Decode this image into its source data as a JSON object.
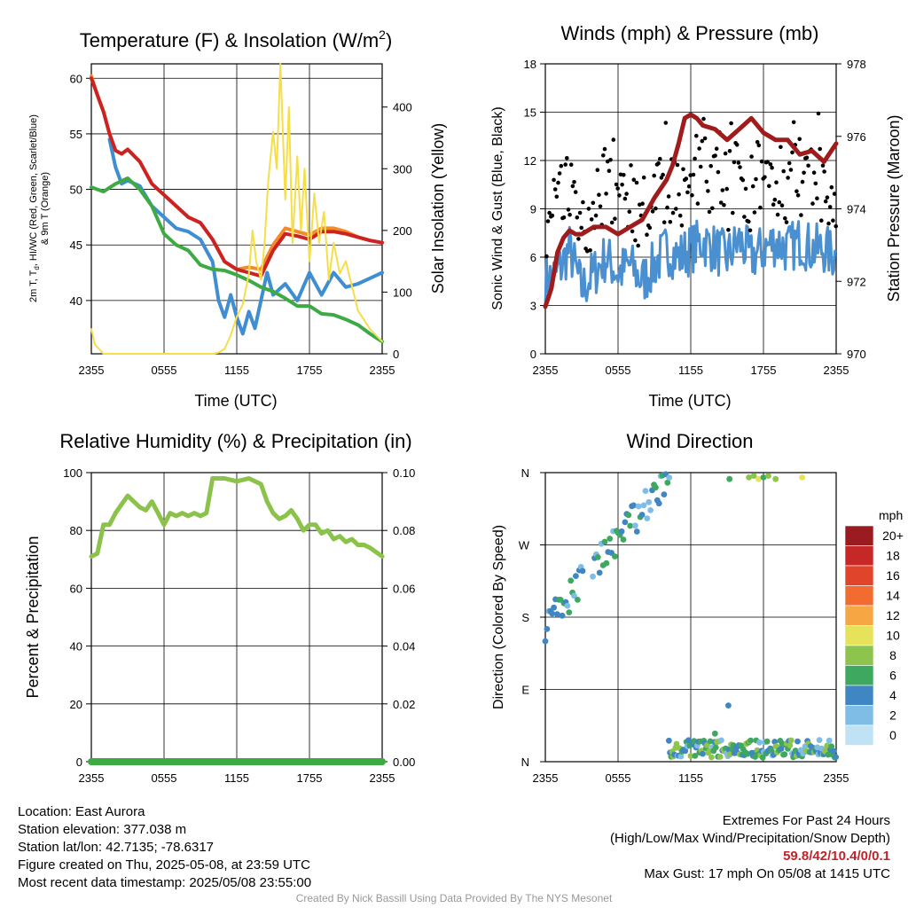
{
  "chart_data": [
    {
      "type": "line",
      "title_main": "Temperature (F) & Insolation (W/m",
      "title_sup": "2",
      "title_end": ")",
      "xlabel": "Time (UTC)",
      "ylabel_left_line1": "2m T, T",
      "ylabel_left_sub": "d",
      "ylabel_left_line1_end": ", HI/WC (Red, Green, Scarlet/Blue)",
      "ylabel_left_line2": "& 9m T (Orange)",
      "ylabel_right": "Solar Insolation (Yellow)",
      "x_ticks": [
        "2355",
        "0555",
        "1155",
        "1755",
        "2355"
      ],
      "ylim_left": [
        35.2,
        61.3
      ],
      "yticks_left": [
        40,
        45,
        50,
        55,
        60
      ],
      "ylim_right": [
        0,
        470
      ],
      "yticks_right": [
        0,
        100,
        200,
        300,
        400
      ],
      "x_hours": [
        0,
        24
      ],
      "series": [
        {
          "color": "#f28c2a",
          "axis": "left",
          "x": [
            0,
            0.5,
            1,
            1.5,
            2,
            2.5,
            3,
            4,
            5,
            6,
            7,
            8,
            9,
            10,
            11,
            12,
            13,
            14,
            15,
            16,
            17,
            18,
            19,
            20,
            21,
            22,
            23,
            24
          ],
          "y": [
            60.2,
            58.5,
            57,
            55,
            53.5,
            53.2,
            53.6,
            52.5,
            50.5,
            49.5,
            48.5,
            47.5,
            47,
            45.5,
            43.5,
            42.8,
            43,
            42.8,
            45,
            46.5,
            46.2,
            45.9,
            46.5,
            46.5,
            46.2,
            45.7,
            45.4,
            45.2
          ]
        },
        {
          "color": "#3f8ed1",
          "axis": "left",
          "x": [
            1.5,
            2,
            2.5,
            3,
            4,
            5,
            6,
            7,
            8,
            9,
            9.5,
            10,
            10.5,
            11,
            11.5,
            12,
            12.5,
            13,
            13.5,
            14,
            14.5,
            15,
            16,
            17,
            18,
            19,
            20,
            21,
            22,
            23,
            24
          ],
          "y": [
            54.5,
            52,
            50.5,
            50.8,
            50.3,
            48.5,
            47.5,
            46.5,
            46.2,
            45.5,
            44.5,
            43.5,
            40,
            38.5,
            40.5,
            38.5,
            37,
            39,
            37.5,
            40,
            42.5,
            40.5,
            41.5,
            40,
            42.5,
            40.5,
            42.5,
            41.2,
            41.5,
            42,
            42.5
          ]
        },
        {
          "color": "#3eaa44",
          "axis": "left",
          "x": [
            0,
            1,
            2,
            3,
            4,
            5,
            6,
            7,
            8,
            9,
            10,
            11,
            12,
            13,
            14,
            15,
            16,
            17,
            18,
            19,
            20,
            21,
            22,
            23,
            24
          ],
          "y": [
            50.2,
            49.8,
            50.5,
            51,
            50,
            48.5,
            46,
            45,
            44.5,
            43.2,
            42.8,
            42.7,
            42.3,
            41.8,
            41.2,
            40.8,
            40.2,
            39.5,
            39.5,
            38.8,
            38.7,
            38.3,
            37.8,
            37,
            36.3
          ]
        },
        {
          "color": "#cc2222",
          "axis": "left",
          "x": [
            0,
            0.5,
            1,
            1.5,
            2,
            2.5,
            3,
            4,
            5,
            6,
            7,
            8,
            9,
            10,
            11,
            12,
            13,
            14,
            15,
            16,
            17,
            18,
            19,
            20,
            21,
            22,
            23,
            24
          ],
          "y": [
            60,
            58.5,
            57,
            55,
            53.5,
            53.2,
            53.6,
            52.5,
            50.5,
            49.5,
            48.5,
            47.5,
            47,
            45.5,
            43.5,
            42.8,
            42.5,
            42.2,
            44.5,
            46,
            45.8,
            45.5,
            46.2,
            46.2,
            46,
            45.7,
            45.4,
            45.2
          ]
        },
        {
          "color": "#f5de4a",
          "axis": "right",
          "x": [
            0,
            0.3,
            1,
            3,
            5,
            7,
            9,
            10,
            10.5,
            11,
            11.5,
            12,
            12.5,
            13,
            13.3,
            13.6,
            14,
            14.3,
            14.6,
            15,
            15.3,
            15.6,
            16,
            16.3,
            16.6,
            17,
            17.3,
            17.6,
            18,
            18.4,
            18.8,
            19.2,
            19.6,
            20,
            20.5,
            21,
            22,
            23,
            24
          ],
          "y": [
            40,
            15,
            0,
            0,
            0,
            0,
            0,
            0,
            2,
            8,
            30,
            60,
            80,
            130,
            200,
            150,
            120,
            180,
            280,
            360,
            300,
            470,
            250,
            400,
            180,
            320,
            200,
            300,
            150,
            260,
            180,
            230,
            120,
            180,
            130,
            150,
            70,
            40,
            20
          ]
        }
      ]
    },
    {
      "type": "scatter",
      "title": "Winds (mph) & Pressure (mb)",
      "xlabel": "Time (UTC)",
      "ylabel_left": "Sonic Wind & Gust (Blue, Black)",
      "ylabel_right": "Station Pressure (Maroon)",
      "x_ticks": [
        "2355",
        "0555",
        "1155",
        "1755",
        "2355"
      ],
      "ylim_left": [
        0,
        18
      ],
      "yticks_left": [
        0,
        3,
        6,
        9,
        12,
        15,
        18
      ],
      "ylim_right": [
        970,
        978
      ],
      "yticks_right": [
        970,
        972,
        974,
        976,
        978
      ],
      "wind_avg": {
        "color": "#4a90d0",
        "x": [
          0,
          1,
          2,
          3,
          4,
          5,
          6,
          7,
          8,
          9,
          10,
          11,
          12,
          13,
          14,
          15,
          16,
          17,
          18,
          19,
          20,
          21,
          22,
          23,
          24
        ],
        "y": [
          4.5,
          5,
          6.5,
          4,
          5,
          6,
          5,
          5.5,
          4.5,
          5.5,
          6.5,
          6,
          6.5,
          7,
          6.5,
          6,
          7,
          6,
          6.5,
          7,
          6.5,
          7,
          6.5,
          6.5,
          6
        ]
      },
      "gust_color": "#000000",
      "pressure": {
        "color": "#a01c1c",
        "x": [
          0,
          0.5,
          1,
          1.5,
          2,
          2.5,
          3,
          4,
          5,
          6,
          7,
          8,
          9,
          10,
          10.5,
          11,
          11.5,
          12,
          12.5,
          13,
          14,
          15,
          16,
          17,
          18,
          19,
          20,
          21,
          22,
          23,
          24
        ],
        "y": [
          971.3,
          971.8,
          972.8,
          973.2,
          973.4,
          973.3,
          973.3,
          973.5,
          973.5,
          973.3,
          973.5,
          973.7,
          974.3,
          974.8,
          975.2,
          975.8,
          976.5,
          976.6,
          976.5,
          976.3,
          976.2,
          975.9,
          976.2,
          976.5,
          976.1,
          975.9,
          975.9,
          975.5,
          975.6,
          975.3,
          975.8
        ]
      }
    },
    {
      "type": "line",
      "title": "Relative Humidity (%) & Precipitation (in)",
      "ylabel_left": "Percent & Precipitation",
      "x_ticks": [
        "2355",
        "0555",
        "1155",
        "1755",
        "2355"
      ],
      "ylim_left": [
        0,
        100
      ],
      "yticks_left": [
        0,
        20,
        40,
        60,
        80,
        100
      ],
      "ylim_right": [
        0,
        0.1
      ],
      "yticks_right": [
        "0.00",
        "0.02",
        "0.04",
        "0.06",
        "0.08",
        "0.10"
      ],
      "series": [
        {
          "color": "#8bc34a",
          "x": [
            0,
            0.5,
            1,
            1.5,
            2,
            3,
            3.5,
            4,
            4.5,
            5,
            5.5,
            6,
            6.5,
            7,
            7.5,
            8,
            8.5,
            9,
            9.5,
            10,
            11,
            12,
            13,
            14,
            14.5,
            15,
            15.5,
            16,
            16.5,
            17,
            17.5,
            18,
            18.5,
            19,
            19.5,
            20,
            20.5,
            21,
            21.5,
            22,
            22.5,
            23,
            24
          ],
          "y": [
            71,
            72,
            82,
            82,
            86,
            92,
            90,
            88,
            87,
            90,
            86,
            82,
            86,
            85,
            86,
            85,
            86,
            85,
            86,
            98,
            98,
            97,
            98,
            96,
            90,
            86,
            84,
            85,
            87,
            84,
            80,
            82,
            82,
            79,
            80,
            77,
            78,
            76,
            77,
            75,
            75,
            74,
            71
          ]
        },
        {
          "color": "#3eaa44",
          "x": [
            0,
            24
          ],
          "y": [
            0,
            0
          ]
        }
      ]
    },
    {
      "type": "scatter",
      "title": "Wind Direction",
      "ylabel_left": "Direction (Colored By Speed)",
      "x_ticks": [
        "2355",
        "0555",
        "1155",
        "1755",
        "2355"
      ],
      "y_ticks": [
        "N",
        "E",
        "S",
        "W",
        "N"
      ],
      "ylim": [
        0,
        360
      ],
      "legend_unit": "mph",
      "legend_labels": [
        "20+",
        "18",
        "16",
        "14",
        "12",
        "10",
        "8",
        "6",
        "4",
        "2",
        "0"
      ],
      "legend_colors": [
        "#9b1c20",
        "#c62828",
        "#e0452b",
        "#f26b31",
        "#f7a644",
        "#e6e25a",
        "#8dc44e",
        "#3ea860",
        "#3f86c3",
        "#7fbde6",
        "#bfe3f5"
      ]
    }
  ],
  "footer": {
    "location": "Location: East Aurora",
    "elevation": "Station elevation: 377.038 m",
    "latlon": "Station lat/lon: 42.7135; -78.6317",
    "created": "Figure created on Thu, 2025-05-08, at 23:59 UTC",
    "recent": "Most recent data timestamp: 2025/05/08 23:55:00",
    "extremes_title": "Extremes For Past 24 Hours",
    "extremes_sub": "(High/Low/Max Wind/Precipitation/Snow Depth)",
    "extremes_values": "59.8/42/10.4/0/0.1",
    "max_gust": "Max Gust: 17 mph On 05/08 at 1415 UTC",
    "credit": "Created By Nick Bassill Using Data Provided By The NYS Mesonet"
  }
}
